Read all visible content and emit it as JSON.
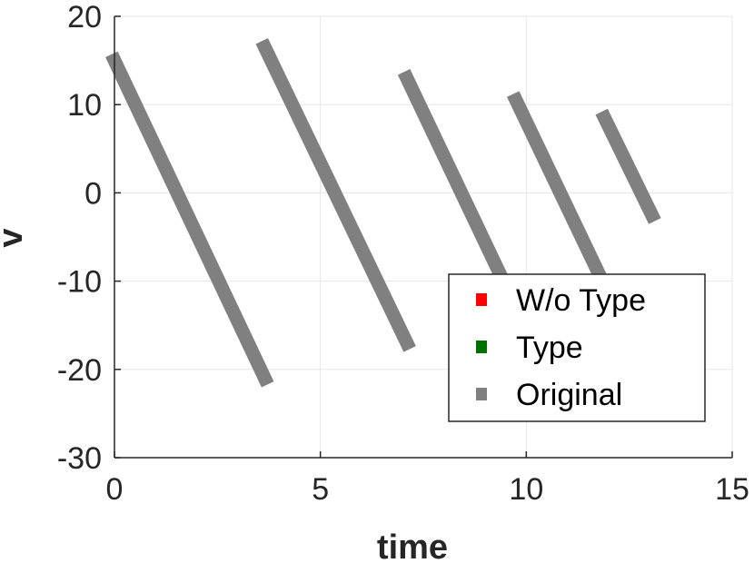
{
  "chart_data": {
    "type": "line",
    "xlabel": "time",
    "ylabel": "v",
    "xlim": [
      0,
      15
    ],
    "ylim": [
      -30,
      20
    ],
    "xticks": [
      "0",
      "5",
      "10",
      "15"
    ],
    "yticks": [
      "20",
      "10",
      "0",
      "-10",
      "-20",
      "-30"
    ],
    "grid": true,
    "legend_position": "bottom-right",
    "series": [
      {
        "name": "W/o Type",
        "color": "#ff0000",
        "segments": []
      },
      {
        "name": "Type",
        "color": "#007000",
        "segments": []
      },
      {
        "name": "Original",
        "color": "#808080",
        "segments": [
          {
            "x": [
              0,
              3.65
            ],
            "y": [
              15,
              -21
            ]
          },
          {
            "x": [
              3.65,
              7.1
            ],
            "y": [
              16.5,
              -17
            ]
          },
          {
            "x": [
              7.1,
              9.75
            ],
            "y": [
              13,
              -13
            ]
          },
          {
            "x": [
              9.75,
              11.9
            ],
            "y": [
              10.5,
              -10.5
            ]
          },
          {
            "x": [
              11.9,
              13.05
            ],
            "y": [
              8.5,
              -2.5
            ]
          }
        ]
      }
    ]
  }
}
